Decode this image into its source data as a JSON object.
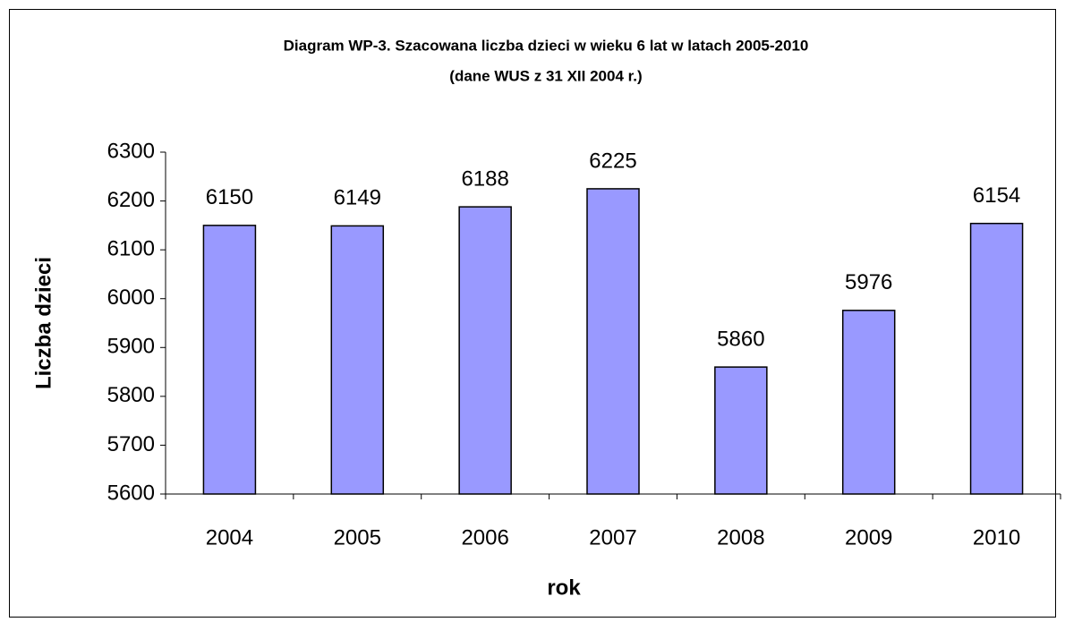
{
  "chart_data": {
    "type": "bar",
    "title": "Diagram WP-3. Szacowana liczba dzieci w wieku 6 lat w latach 2005-2010",
    "subtitle": "(dane WUS z 31 XII 2004 r.)",
    "x_label": "rok",
    "y_label": "Liczba dzieci",
    "categories": [
      "2004",
      "2005",
      "2006",
      "2007",
      "2008",
      "2009",
      "2010"
    ],
    "values": [
      6150,
      6149,
      6188,
      6225,
      5860,
      5976,
      6154
    ],
    "color": "#9999ff",
    "ylim": [
      5600,
      6300
    ],
    "yticks": [
      5600,
      5700,
      5800,
      5900,
      6000,
      6100,
      6200,
      6300
    ],
    "grid": false
  }
}
